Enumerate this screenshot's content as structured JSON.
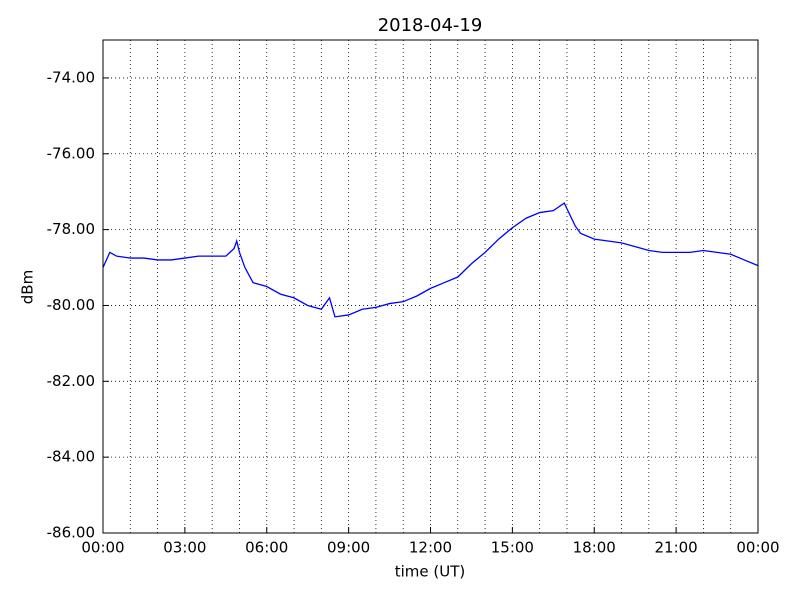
{
  "chart_data": {
    "type": "line",
    "title": "2018-04-19",
    "x_label": "time (UT)",
    "y_label": "dBm",
    "x": [
      0,
      0.25,
      0.5,
      1,
      1.5,
      2,
      2.5,
      3,
      3.5,
      4,
      4.5,
      4.8,
      4.9,
      5,
      5.2,
      5.5,
      6,
      6.5,
      7,
      7.5,
      8,
      8.3,
      8.5,
      9,
      9.5,
      10,
      10.5,
      11,
      11.5,
      12,
      12.5,
      13,
      13.5,
      14,
      14.5,
      15,
      15.5,
      16,
      16.5,
      16.9,
      17,
      17.3,
      17.5,
      18,
      18.5,
      19,
      19.5,
      20,
      20.5,
      21,
      21.5,
      22,
      22.5,
      23,
      23.5,
      24
    ],
    "series": [
      {
        "name": "dBm",
        "color": "#0000ff",
        "values": [
          -79.0,
          -78.6,
          -78.7,
          -78.75,
          -78.75,
          -78.8,
          -78.8,
          -78.75,
          -78.7,
          -78.7,
          -78.7,
          -78.5,
          -78.3,
          -78.6,
          -79.0,
          -79.4,
          -79.5,
          -79.7,
          -79.8,
          -80.0,
          -80.1,
          -79.8,
          -80.3,
          -80.25,
          -80.1,
          -80.05,
          -79.95,
          -79.9,
          -79.75,
          -79.55,
          -79.4,
          -79.25,
          -78.9,
          -78.6,
          -78.25,
          -77.95,
          -77.7,
          -77.55,
          -77.5,
          -77.3,
          -77.45,
          -77.9,
          -78.1,
          -78.25,
          -78.3,
          -78.35,
          -78.45,
          -78.55,
          -78.6,
          -78.6,
          -78.6,
          -78.55,
          -78.6,
          -78.65,
          -78.8,
          -78.95
        ]
      }
    ],
    "xlim": [
      0,
      24
    ],
    "xticks": [
      {
        "value": 0,
        "label": "00:00"
      },
      {
        "value": 3,
        "label": "03:00"
      },
      {
        "value": 6,
        "label": "06:00"
      },
      {
        "value": 9,
        "label": "09:00"
      },
      {
        "value": 12,
        "label": "12:00"
      },
      {
        "value": 15,
        "label": "15:00"
      },
      {
        "value": 18,
        "label": "18:00"
      },
      {
        "value": 21,
        "label": "21:00"
      },
      {
        "value": 24,
        "label": "00:00"
      }
    ],
    "xminorticks": [
      1,
      2,
      4,
      5,
      7,
      8,
      10,
      11,
      13,
      14,
      16,
      17,
      19,
      20,
      22,
      23
    ],
    "ylim": [
      -86,
      -73
    ],
    "yticks": [
      {
        "value": -86,
        "label": "-86.00"
      },
      {
        "value": -84,
        "label": "-84.00"
      },
      {
        "value": -82,
        "label": "-82.00"
      },
      {
        "value": -80,
        "label": "-80.00"
      },
      {
        "value": -78,
        "label": "-78.00"
      },
      {
        "value": -76,
        "label": "-76.00"
      },
      {
        "value": -74,
        "label": "-74.00"
      }
    ],
    "grid": true
  }
}
